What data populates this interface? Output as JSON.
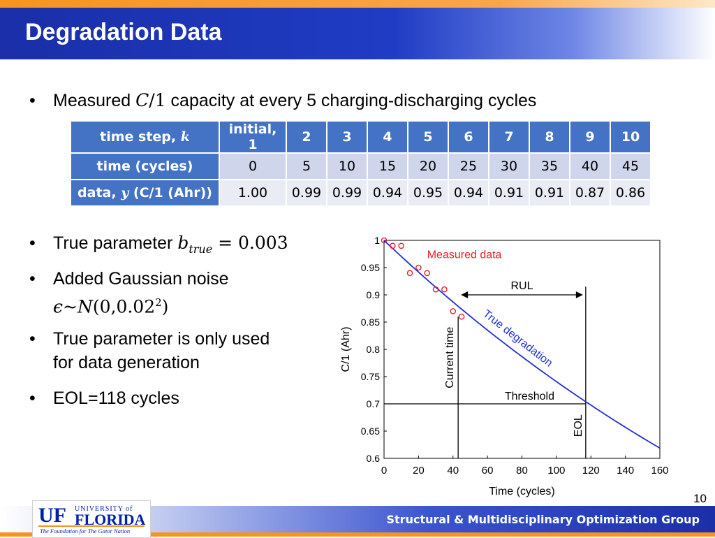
{
  "slide": {
    "title": "Degradation Data",
    "page_number": "10",
    "footer": "Structural & Multidisciplinary Optimization Group",
    "logo": {
      "uf": "UF",
      "university_of": "UNIVERSITY of",
      "florida": "FLORIDA",
      "tagline": "The Foundation for The Gator Nation"
    }
  },
  "bullets": {
    "b1_pre": "Measured ",
    "b1_math": "C",
    "b1_math2": "/1",
    "b1_post": " capacity at every 5 charging-discharging cycles",
    "b2_pre": "True parameter ",
    "b2_math": "b",
    "b2_sub": "true",
    "b2_eq": " = 0.003",
    "b3_line1": "Added Gaussian noise",
    "b3_eps": "ϵ",
    "b3_tilde": "~",
    "b3_N": "N",
    "b3_args": "(0,0.02",
    "b3_sup": "2",
    "b3_close": ")",
    "b4_line1": "True parameter is only used",
    "b4_line2": "for data generation",
    "b5": "EOL=118 cycles"
  },
  "table": {
    "row1_label": "time step, ",
    "row1_label_math": "k",
    "row1": [
      "initial, 1",
      "2",
      "3",
      "4",
      "5",
      "6",
      "7",
      "8",
      "9",
      "10"
    ],
    "row2_label": "time (cycles)",
    "row2": [
      "0",
      "5",
      "10",
      "15",
      "20",
      "25",
      "30",
      "35",
      "40",
      "45"
    ],
    "row3_label_pre": "data, ",
    "row3_label_math": "y",
    "row3_label_post": " (C/1 (Ahr))",
    "row3": [
      "1.00",
      "0.99",
      "0.99",
      "0.94",
      "0.95",
      "0.94",
      "0.91",
      "0.91",
      "0.87",
      "0.86"
    ]
  },
  "chart_data": {
    "type": "scatter",
    "xlabel": "Time (cycles)",
    "ylabel": "C/1 (Ahr)",
    "xlim": [
      0,
      160
    ],
    "ylim": [
      0.6,
      1.0
    ],
    "xticks": [
      "0",
      "20",
      "40",
      "60",
      "80",
      "100",
      "120",
      "140",
      "160"
    ],
    "yticks": [
      "0.6",
      "0.65",
      "0.7",
      "0.75",
      "0.8",
      "0.85",
      "0.9",
      "0.95",
      "1"
    ],
    "series": [
      {
        "name": "Measured data",
        "kind": "points",
        "color": "#e8202a",
        "x": [
          0,
          5,
          10,
          15,
          20,
          25,
          30,
          35,
          40,
          45
        ],
        "y": [
          1.0,
          0.99,
          0.99,
          0.94,
          0.95,
          0.94,
          0.91,
          0.91,
          0.87,
          0.86
        ]
      },
      {
        "name": "True degradation",
        "kind": "curve",
        "color": "#1f2fd6",
        "b": 0.003,
        "x_range": [
          0,
          160
        ]
      }
    ],
    "annotations": {
      "threshold_label": "Threshold",
      "threshold_y": 0.7,
      "current_time_label": "Current time",
      "current_time_x": 43,
      "eol_label": "EOL",
      "eol_x": 117,
      "rul_label": "RUL"
    }
  }
}
